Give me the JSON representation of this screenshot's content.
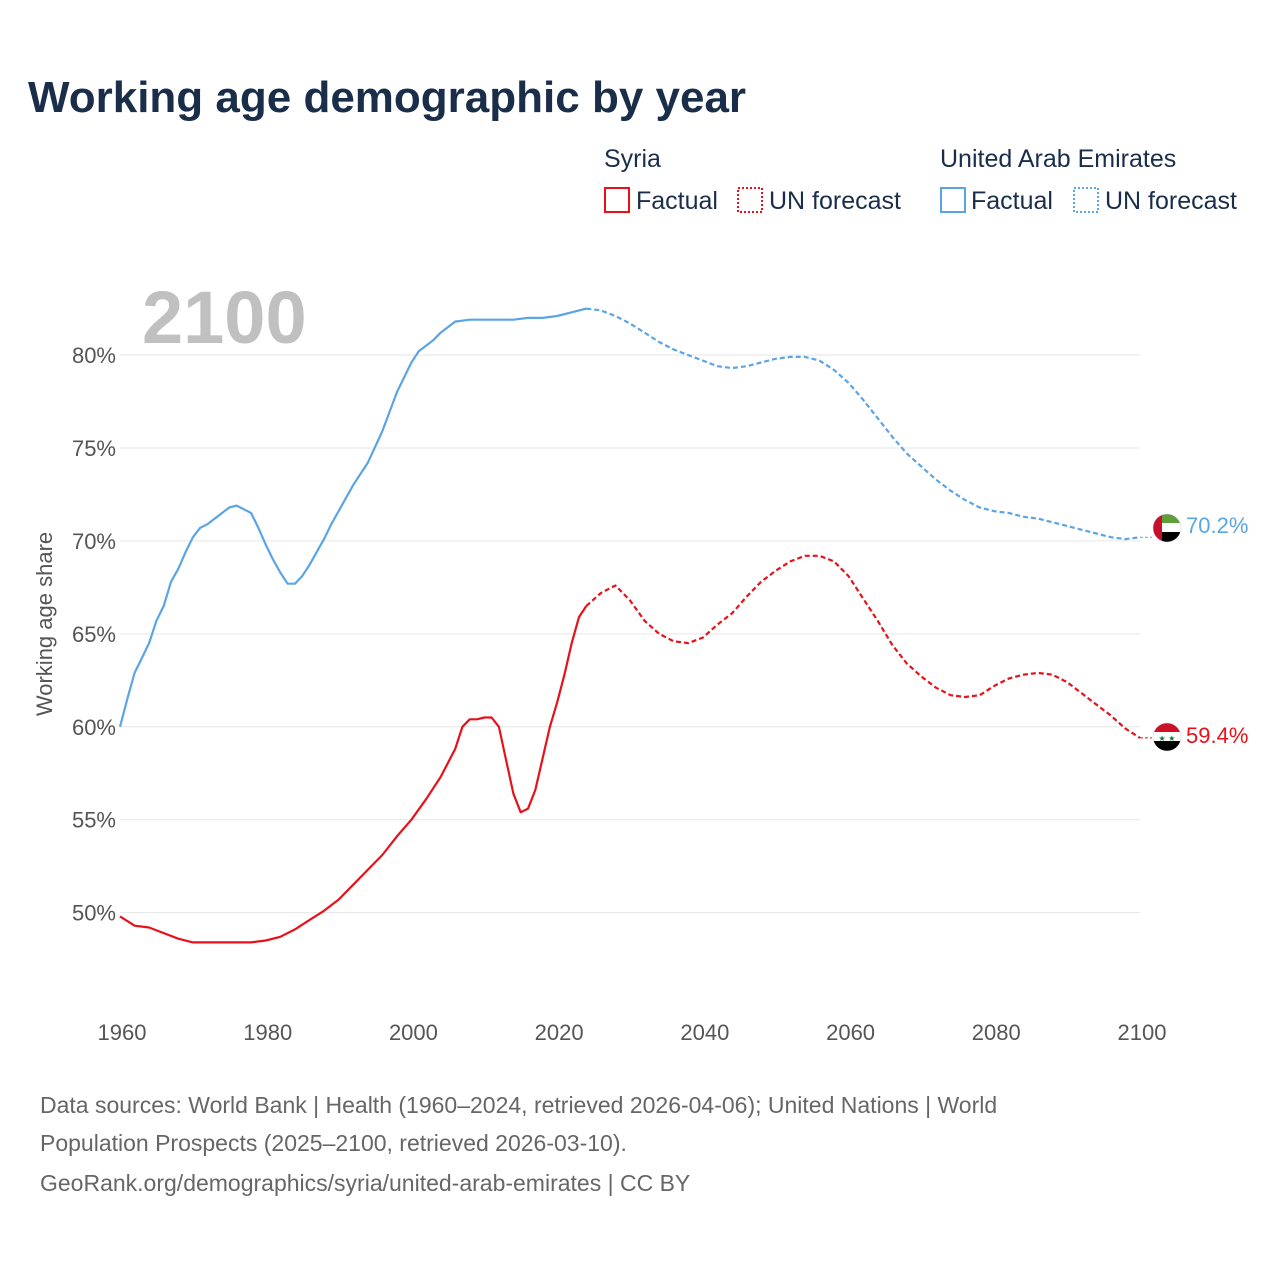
{
  "page_title": "Working age demographic by year",
  "legend": {
    "groups": [
      {
        "country": "Syria",
        "factual_label": "Factual",
        "forecast_label": "UN forecast",
        "color": "#e8111a"
      },
      {
        "country": "United Arab Emirates",
        "factual_label": "Factual",
        "forecast_label": "UN forecast",
        "color": "#5ba4e5"
      }
    ]
  },
  "year_label": "2100",
  "footer": {
    "line1": "Data sources: World Bank | Health (1960–2024, retrieved 2026-04-06); United Nations | World",
    "line2": "Population Prospects (2025–2100, retrieved 2026-03-10).",
    "line3": "GeoRank.org/demographics/syria/united-arab-emirates | CC BY"
  },
  "chart_data": {
    "type": "line",
    "title": "Working age demographic by year",
    "xlabel": "",
    "ylabel": "Working age share",
    "xlim": [
      1960,
      2100
    ],
    "ylim": [
      45.3,
      83.5
    ],
    "x_ticks": [
      1960,
      1980,
      2000,
      2020,
      2040,
      2060,
      2080,
      2100
    ],
    "x_tick_labels": [
      "1960",
      "1980",
      "2000",
      "2020",
      "2040",
      "2060",
      "2080",
      "2100"
    ],
    "y_ticks": [
      50,
      55,
      60,
      65,
      70,
      75,
      80
    ],
    "y_tick_labels": [
      "50%",
      "55%",
      "60%",
      "65%",
      "70%",
      "75%",
      "80%"
    ],
    "grid": true,
    "factual_end_year": 2024,
    "series": [
      {
        "name": "Syria",
        "color": "#e8111a",
        "end_label": "59.4%",
        "x": [
          1960,
          1962,
          1964,
          1966,
          1968,
          1970,
          1972,
          1974,
          1976,
          1978,
          1980,
          1982,
          1984,
          1986,
          1988,
          1990,
          1992,
          1994,
          1996,
          1998,
          2000,
          2002,
          2004,
          2006,
          2007,
          2008,
          2009,
          2010,
          2011,
          2012,
          2013,
          2014,
          2015,
          2016,
          2017,
          2018,
          2019,
          2020,
          2021,
          2022,
          2023,
          2024,
          2026,
          2028,
          2030,
          2032,
          2034,
          2036,
          2038,
          2040,
          2042,
          2044,
          2046,
          2048,
          2050,
          2052,
          2054,
          2056,
          2058,
          2060,
          2062,
          2064,
          2066,
          2068,
          2070,
          2072,
          2074,
          2076,
          2078,
          2080,
          2082,
          2084,
          2086,
          2088,
          2090,
          2092,
          2094,
          2096,
          2098,
          2100
        ],
        "values": [
          49.8,
          49.3,
          49.2,
          48.9,
          48.6,
          48.4,
          48.4,
          48.4,
          48.4,
          48.4,
          48.5,
          48.7,
          49.1,
          49.6,
          50.1,
          50.7,
          51.5,
          52.3,
          53.1,
          54.1,
          55.0,
          56.1,
          57.3,
          58.8,
          60.0,
          60.4,
          60.4,
          60.5,
          60.5,
          60.0,
          58.2,
          56.4,
          55.4,
          55.6,
          56.6,
          58.3,
          60.0,
          61.3,
          62.8,
          64.5,
          65.9,
          66.5,
          67.2,
          67.6,
          66.8,
          65.7,
          65.0,
          64.6,
          64.5,
          64.8,
          65.5,
          66.1,
          67.0,
          67.8,
          68.4,
          68.9,
          69.2,
          69.2,
          68.9,
          68.1,
          66.9,
          65.7,
          64.4,
          63.4,
          62.7,
          62.1,
          61.7,
          61.6,
          61.7,
          62.2,
          62.6,
          62.8,
          62.9,
          62.8,
          62.4,
          61.8,
          61.2,
          60.6,
          59.9,
          59.4
        ]
      },
      {
        "name": "United Arab Emirates",
        "color": "#5ba4e5",
        "end_label": "70.2%",
        "x": [
          1960,
          1961,
          1962,
          1963,
          1964,
          1965,
          1966,
          1967,
          1968,
          1969,
          1970,
          1971,
          1972,
          1973,
          1974,
          1975,
          1976,
          1977,
          1978,
          1979,
          1980,
          1981,
          1982,
          1983,
          1984,
          1985,
          1986,
          1987,
          1988,
          1989,
          1990,
          1992,
          1994,
          1996,
          1998,
          2000,
          2001,
          2002,
          2003,
          2004,
          2006,
          2008,
          2010,
          2012,
          2014,
          2016,
          2018,
          2020,
          2022,
          2024,
          2026,
          2028,
          2030,
          2032,
          2034,
          2036,
          2038,
          2040,
          2042,
          2044,
          2046,
          2048,
          2050,
          2052,
          2054,
          2056,
          2058,
          2060,
          2062,
          2064,
          2066,
          2068,
          2070,
          2072,
          2074,
          2076,
          2078,
          2080,
          2082,
          2084,
          2086,
          2088,
          2090,
          2092,
          2094,
          2096,
          2098,
          2100
        ],
        "values": [
          60.0,
          61.5,
          62.9,
          63.7,
          64.5,
          65.7,
          66.5,
          67.8,
          68.5,
          69.4,
          70.2,
          70.7,
          70.9,
          71.2,
          71.5,
          71.8,
          71.9,
          71.7,
          71.5,
          70.7,
          69.8,
          69.0,
          68.3,
          67.7,
          67.7,
          68.1,
          68.7,
          69.4,
          70.1,
          70.9,
          71.6,
          73.0,
          74.2,
          75.9,
          78.0,
          79.6,
          80.2,
          80.5,
          80.8,
          81.2,
          81.8,
          81.9,
          81.9,
          81.9,
          81.9,
          82.0,
          82.0,
          82.1,
          82.3,
          82.5,
          82.4,
          82.1,
          81.7,
          81.2,
          80.7,
          80.3,
          80.0,
          79.7,
          79.4,
          79.3,
          79.4,
          79.6,
          79.8,
          79.9,
          79.9,
          79.7,
          79.2,
          78.5,
          77.6,
          76.6,
          75.6,
          74.7,
          74.0,
          73.3,
          72.7,
          72.2,
          71.8,
          71.6,
          71.5,
          71.3,
          71.2,
          71.0,
          70.8,
          70.6,
          70.4,
          70.2,
          70.1,
          70.2
        ]
      }
    ]
  }
}
